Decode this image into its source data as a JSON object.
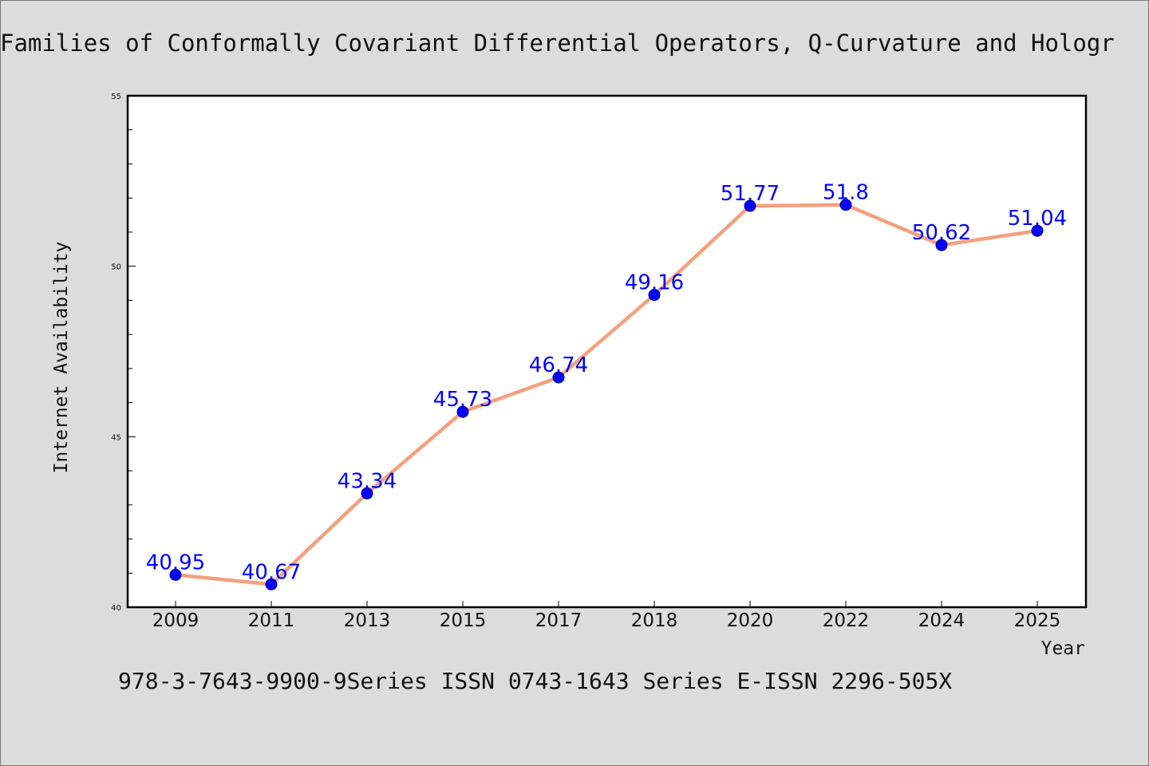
{
  "chart_data": {
    "type": "line",
    "title": "Families of Conformally Covariant Differential Operators, Q-Curvature and Hologr",
    "footer": "978-3-7643-9900-9Series ISSN 0743-1643 Series E-ISSN 2296-505X",
    "xlabel": "Year",
    "ylabel": "Internet Availability",
    "categories": [
      "2009",
      "2011",
      "2013",
      "2015",
      "2017",
      "2018",
      "2020",
      "2022",
      "2024",
      "2025"
    ],
    "series": [
      {
        "values": [
          40.95,
          40.67,
          43.34,
          45.73,
          46.74,
          49.16,
          51.77,
          51.8,
          50.62,
          51.04
        ]
      }
    ],
    "data_labels": [
      "40.95",
      "40.67",
      "43.34",
      "45.73",
      "46.74",
      "49.16",
      "51.77",
      "51.8",
      "50.62",
      "51.04"
    ],
    "ylim": [
      40,
      55
    ],
    "yticks": [
      40,
      45,
      50,
      55
    ],
    "y_minor_step": 1,
    "grid": false,
    "colors": {
      "line": "#f4a07e",
      "marker": "#0000ff",
      "marker_edge": "#00008b",
      "data_label": "#0000ff",
      "plot_bg": "#ffffff",
      "page_bg": "#dcdcdc"
    }
  }
}
